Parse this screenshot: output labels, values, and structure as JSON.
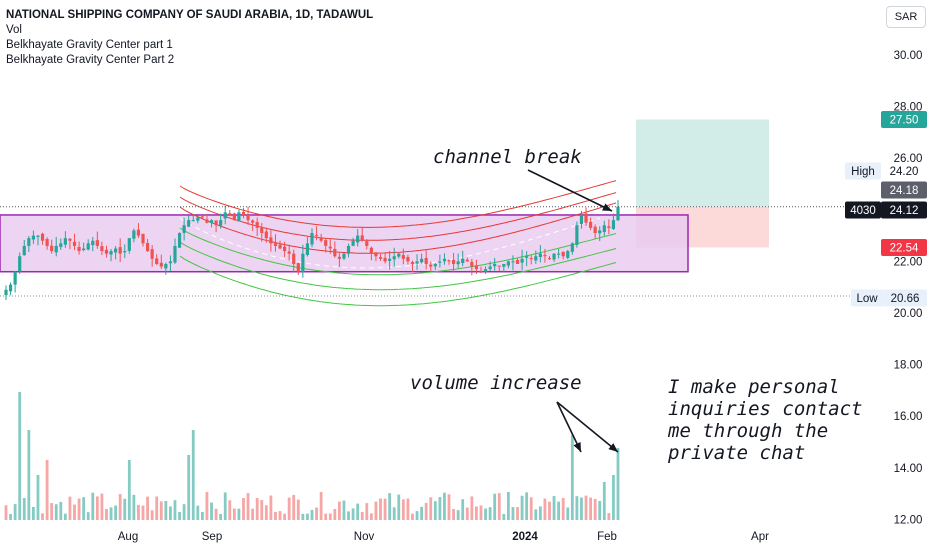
{
  "header": {
    "title": "NATIONAL SHIPPING COMPANY OF SAUDI ARABIA, 1D, TADAWUL",
    "indicators": [
      "Vol",
      "Belkhayate Gravity Center part 1",
      "Belkhayate Gravity Center Part 2"
    ]
  },
  "currency_label": "SAR",
  "annotations": {
    "channel_break": "channel break",
    "volume_increase": "volume increase",
    "note_lines": [
      "I make personal",
      "inquiries contact",
      "me through the",
      "private chat"
    ]
  },
  "price_badges": {
    "high_label": "High",
    "high_value": "24.20",
    "prev_value": "24.18",
    "symbol": "4030",
    "last_value": "24.12",
    "target_value": "27.50",
    "stop_value": "22.54",
    "low_label": "Low",
    "low_value": "20.66"
  },
  "colors": {
    "up": "#26a69a",
    "down": "#ef5350",
    "vol_up": "#85cbc4",
    "vol_down": "#f5a6a5",
    "channel_fill": "#e8c9f0",
    "channel_stroke": "#9c27b0",
    "target_zone": "#d2ede8",
    "stop_zone": "#fcdada",
    "upper_band": "#e53935",
    "lower_band": "#43c443",
    "last_badge": "#131722",
    "target_badge": "#26a69a",
    "stop_badge": "#f23645",
    "prev_badge": "#5d606b"
  },
  "chart_data": {
    "type": "candlestick",
    "y_axis_ticks": [
      "30.00",
      "28.00",
      "26.00",
      "24.00",
      "22.00",
      "20.00",
      "18.00",
      "16.00",
      "14.00",
      "12.00"
    ],
    "x_axis_ticks": [
      "Aug",
      "Sep",
      "Nov",
      "2024",
      "Feb",
      "Apr"
    ],
    "ylim": [
      12,
      31.3
    ],
    "scale": "linear",
    "grid": false,
    "channel": {
      "upper": 23.8,
      "lower": 21.6
    },
    "position": {
      "entry": 24.12,
      "target": 27.5,
      "stop": 22.54
    },
    "levels": {
      "high": 24.2,
      "low": 20.66
    },
    "closes": [
      20.9,
      21.1,
      21.6,
      22.2,
      22.6,
      22.9,
      23.0,
      23.0,
      22.8,
      22.6,
      22.4,
      22.6,
      22.7,
      22.9,
      22.8,
      22.6,
      22.4,
      22.5,
      22.7,
      22.8,
      22.6,
      22.4,
      22.3,
      22.4,
      22.5,
      22.3,
      22.4,
      22.9,
      23.2,
      23.0,
      22.7,
      22.4,
      22.1,
      21.9,
      21.8,
      21.9,
      22.0,
      22.6,
      23.1,
      23.4,
      23.6,
      23.6,
      23.7,
      23.7,
      23.5,
      23.6,
      23.4,
      23.6,
      23.9,
      23.8,
      23.6,
      23.9,
      23.8,
      23.6,
      23.5,
      23.3,
      23.1,
      22.9,
      22.7,
      22.6,
      22.5,
      22.4,
      22.3,
      21.9,
      21.6,
      22.3,
      22.7,
      23.1,
      23.0,
      22.8,
      22.6,
      22.5,
      22.2,
      22.1,
      22.3,
      22.6,
      22.8,
      23.0,
      22.8,
      22.6,
      22.3,
      22.2,
      22.1,
      22.0,
      22.1,
      22.2,
      22.3,
      22.1,
      22.0,
      21.9,
      22.0,
      22.1,
      21.9,
      21.8,
      21.9,
      22.0,
      22.1,
      22.0,
      21.9,
      22.0,
      22.1,
      22.0,
      21.8,
      21.7,
      21.6,
      21.7,
      21.8,
      21.9,
      21.8,
      21.9,
      22.0,
      22.0,
      21.9,
      22.1,
      22.2,
      22.1,
      22.2,
      22.3,
      22.2,
      22.1,
      22.3,
      22.3,
      22.2,
      22.4,
      22.7,
      23.4,
      23.8,
      23.5,
      23.3,
      23.1,
      23.2,
      23.4,
      23.3,
      23.6,
      24.12
    ],
    "volume_bars": 135
  }
}
